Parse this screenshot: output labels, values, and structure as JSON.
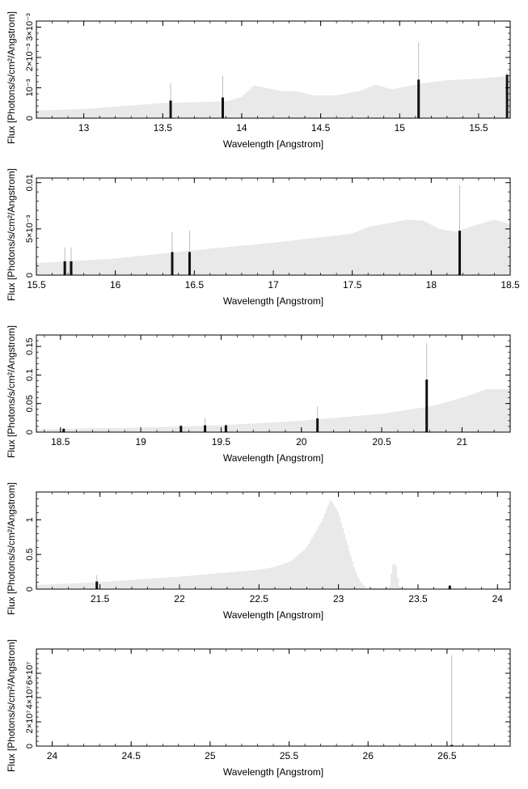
{
  "chart_data": [
    {
      "type": "bar",
      "xlabel": "Wavelength [Angstrom]",
      "ylabel": "Flux [Photons/s/cm²/Angstrom]",
      "xlim": [
        12.7,
        15.7
      ],
      "ylim": [
        0,
        0.0032
      ],
      "xticks": [
        "13",
        "13.5",
        "14",
        "14.5",
        "15",
        "15.5"
      ],
      "yticks": [
        {
          "v": 0,
          "label": "0"
        },
        {
          "v": 0.001,
          "label": "10⁻³"
        },
        {
          "v": 0.002,
          "label": "2×10⁻³"
        },
        {
          "v": 0.003,
          "label": "3×10⁻³"
        }
      ],
      "continuum": [
        [
          12.7,
          0.00025
        ],
        [
          13.0,
          0.0003
        ],
        [
          13.5,
          0.0005
        ],
        [
          13.9,
          0.00055
        ],
        [
          14.0,
          0.0007
        ],
        [
          14.08,
          0.00108
        ],
        [
          14.15,
          0.001
        ],
        [
          14.25,
          0.0009
        ],
        [
          14.35,
          0.00088
        ],
        [
          14.45,
          0.00075
        ],
        [
          14.6,
          0.00075
        ],
        [
          14.75,
          0.0009
        ],
        [
          14.85,
          0.0011
        ],
        [
          14.95,
          0.00095
        ],
        [
          15.05,
          0.00105
        ],
        [
          15.15,
          0.00115
        ],
        [
          15.3,
          0.00125
        ],
        [
          15.5,
          0.0013
        ],
        [
          15.7,
          0.0014
        ]
      ],
      "lines": [
        {
          "x": 13.55,
          "y": 0.00058,
          "err": 0.00115
        },
        {
          "x": 13.88,
          "y": 0.00068,
          "err": 0.0014
        },
        {
          "x": 15.12,
          "y": 0.00127,
          "err": 0.0025
        },
        {
          "x": 15.68,
          "y": 0.00143,
          "err": 0.0015
        }
      ]
    },
    {
      "type": "bar",
      "xlabel": "Wavelength [Angstrom]",
      "ylabel": "Flux [Photons/s/cm²/Angstrom]",
      "xlim": [
        15.5,
        18.5
      ],
      "ylim": [
        0,
        0.0105
      ],
      "xticks": [
        "15.5",
        "16",
        "16.5",
        "17",
        "17.5",
        "18",
        "18.5"
      ],
      "yticks": [
        {
          "v": 0,
          "label": "0"
        },
        {
          "v": 0.005,
          "label": "5×10⁻³"
        },
        {
          "v": 0.01,
          "label": "0.01"
        }
      ],
      "continuum": [
        [
          15.5,
          0.0013
        ],
        [
          16.0,
          0.0018
        ],
        [
          16.5,
          0.0027
        ],
        [
          17.0,
          0.0035
        ],
        [
          17.5,
          0.0045
        ],
        [
          17.6,
          0.0052
        ],
        [
          17.85,
          0.006
        ],
        [
          17.95,
          0.0059
        ],
        [
          18.05,
          0.005
        ],
        [
          18.15,
          0.0047
        ],
        [
          18.3,
          0.0055
        ],
        [
          18.4,
          0.006
        ],
        [
          18.5,
          0.0055
        ]
      ],
      "lines": [
        {
          "x": 15.68,
          "y": 0.0015,
          "err": 0.003
        },
        {
          "x": 15.72,
          "y": 0.0015,
          "err": 0.003
        },
        {
          "x": 16.36,
          "y": 0.0025,
          "err": 0.0047
        },
        {
          "x": 16.47,
          "y": 0.0025,
          "err": 0.0048
        },
        {
          "x": 18.18,
          "y": 0.0048,
          "err": 0.0097
        }
      ]
    },
    {
      "type": "bar",
      "xlabel": "Wavelength [Angstrom]",
      "ylabel": "Flux [Photons/s/cm²/Angstrom]",
      "xlim": [
        18.35,
        21.3
      ],
      "ylim": [
        0,
        0.17
      ],
      "xticks": [
        "18.5",
        "19",
        "19.5",
        "20",
        "20.5",
        "21"
      ],
      "yticks": [
        {
          "v": 0,
          "label": "0"
        },
        {
          "v": 0.05,
          "label": "0.05"
        },
        {
          "v": 0.1,
          "label": "0.1"
        },
        {
          "v": 0.15,
          "label": "0.15"
        }
      ],
      "continuum": [
        [
          18.35,
          0.005
        ],
        [
          19.0,
          0.008
        ],
        [
          19.5,
          0.012
        ],
        [
          20.0,
          0.02
        ],
        [
          20.5,
          0.032
        ],
        [
          20.8,
          0.045
        ],
        [
          21.0,
          0.06
        ],
        [
          21.15,
          0.075
        ],
        [
          21.3,
          0.075
        ]
      ],
      "lines": [
        {
          "x": 18.52,
          "y": 0.006,
          "err": 0.007
        },
        {
          "x": 19.25,
          "y": 0.011,
          "err": 0.013
        },
        {
          "x": 19.4,
          "y": 0.012,
          "err": 0.025
        },
        {
          "x": 19.53,
          "y": 0.012,
          "err": 0.015
        },
        {
          "x": 20.1,
          "y": 0.024,
          "err": 0.045
        },
        {
          "x": 20.78,
          "y": 0.092,
          "err": 0.155
        }
      ]
    },
    {
      "type": "bar",
      "xlabel": "Wavelength [Angstrom]",
      "ylabel": "Flux [Photons/s/cm²/Angstrom]",
      "xlim": [
        21.1,
        24.08
      ],
      "ylim": [
        0,
        1.4
      ],
      "xticks": [
        "21.5",
        "22",
        "22.5",
        "23",
        "23.5",
        "24"
      ],
      "yticks": [
        {
          "v": 0,
          "label": "0"
        },
        {
          "v": 0.5,
          "label": "0.5"
        },
        {
          "v": 1,
          "label": "1"
        }
      ],
      "continuum": [
        [
          21.1,
          0.06
        ],
        [
          21.5,
          0.1
        ],
        [
          22.0,
          0.18
        ],
        [
          22.5,
          0.28
        ],
        [
          22.6,
          0.32
        ],
        [
          22.7,
          0.4
        ],
        [
          22.8,
          0.6
        ],
        [
          22.9,
          1.0
        ],
        [
          22.95,
          1.3
        ],
        [
          23.0,
          1.1
        ],
        [
          23.05,
          0.7
        ],
        [
          23.1,
          0.3
        ],
        [
          23.14,
          0.1
        ],
        [
          23.18,
          0.01
        ],
        [
          23.32,
          0.01
        ],
        [
          23.34,
          0.35
        ],
        [
          23.36,
          0.38
        ],
        [
          23.38,
          0.05
        ],
        [
          23.4,
          0.005
        ],
        [
          24.08,
          0.005
        ]
      ],
      "lines": [
        {
          "x": 21.48,
          "y": 0.11,
          "err": 0.2
        },
        {
          "x": 23.7,
          "y": 0.05,
          "err": 0.06
        }
      ]
    },
    {
      "type": "bar",
      "xlabel": "Wavelength [Angstrom]",
      "ylabel": "Flux [Photons/s/cm²/Angstrom]",
      "xlim": [
        23.9,
        26.9
      ],
      "ylim": [
        0,
        80000000
      ],
      "xticks": [
        "24",
        "24.5",
        "25",
        "25.5",
        "26",
        "26.5"
      ],
      "yticks": [
        {
          "v": 0,
          "label": "0"
        },
        {
          "v": 20000000,
          "label": "2×10⁷"
        },
        {
          "v": 40000000,
          "label": "4×10⁷"
        },
        {
          "v": 60000000,
          "label": "6×10⁷"
        }
      ],
      "continuum": [
        [
          23.9,
          0
        ],
        [
          26.9,
          0
        ]
      ],
      "lines": [
        {
          "x": 26.53,
          "y": 1000000,
          "err": 75000000
        }
      ]
    }
  ]
}
